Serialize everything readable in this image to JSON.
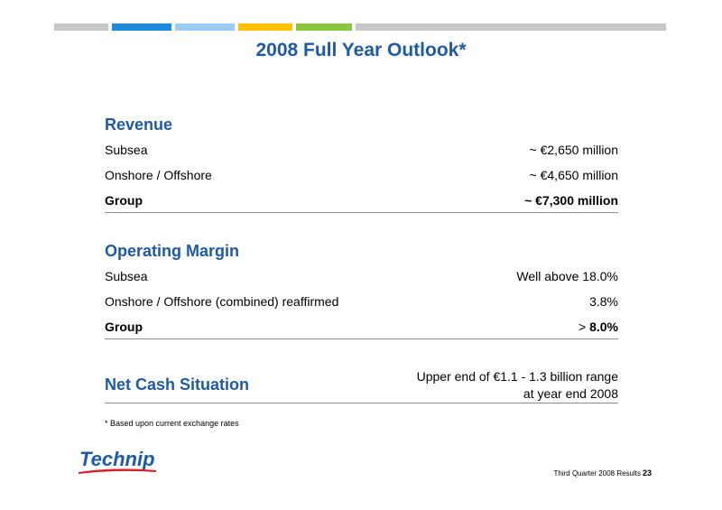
{
  "colors": {
    "accent": "#1d5ba5",
    "logo_red": "#d8202a",
    "bar": [
      "#c8c8c8",
      "#1d8ce0",
      "#9ccbf2",
      "#ffc000",
      "#8cc63f",
      "#c8c8c8"
    ]
  },
  "title": "2008 Full Year Outlook*",
  "revenue": {
    "heading": "Revenue",
    "rows": [
      {
        "label": "Subsea",
        "value": "~ €2,650 million"
      },
      {
        "label": "Onshore / Offshore",
        "value": "~ €4,650 million"
      },
      {
        "label": "Group",
        "value": "~ €7,300 million"
      }
    ]
  },
  "operating_margin": {
    "heading": "Operating Margin",
    "rows": [
      {
        "label": "Subsea",
        "value": "Well above 18.0%"
      },
      {
        "label": "Onshore / Offshore (combined) reaffirmed",
        "value": "3.8%"
      },
      {
        "label": "Group",
        "value_prefix": ">",
        "value_bold": "8.0%"
      }
    ]
  },
  "net_cash": {
    "heading": "Net Cash Situation",
    "value_line1": "Upper end of €1.1 - 1.3 billion range",
    "value_line2": "at year end 2008"
  },
  "footnote": "* Based upon current exchange rates",
  "logo_text": "Technip",
  "footer": {
    "text": "Third Quarter 2008 Results",
    "page": "23"
  }
}
